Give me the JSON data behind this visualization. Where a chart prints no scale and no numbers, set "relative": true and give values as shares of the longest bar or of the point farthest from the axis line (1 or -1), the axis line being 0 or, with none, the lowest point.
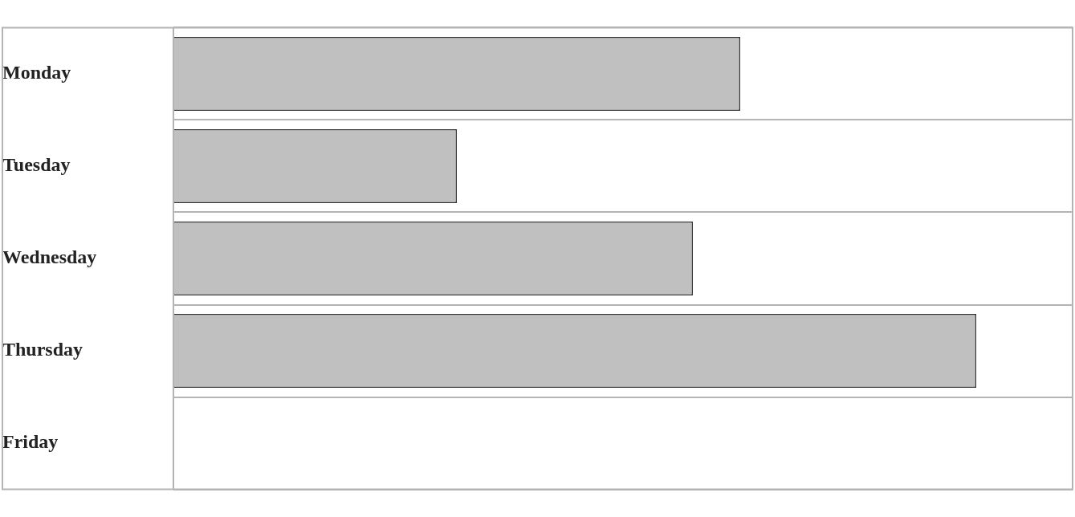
{
  "chart_data": {
    "type": "bar",
    "orientation": "horizontal",
    "relative": true,
    "grid": "y",
    "categories": [
      "Monday",
      "Tuesday",
      "Wednesday",
      "Thursday",
      "Friday"
    ],
    "values": [
      0.706,
      0.353,
      0.647,
      1,
      0
    ],
    "color": "#c0c0c0"
  }
}
